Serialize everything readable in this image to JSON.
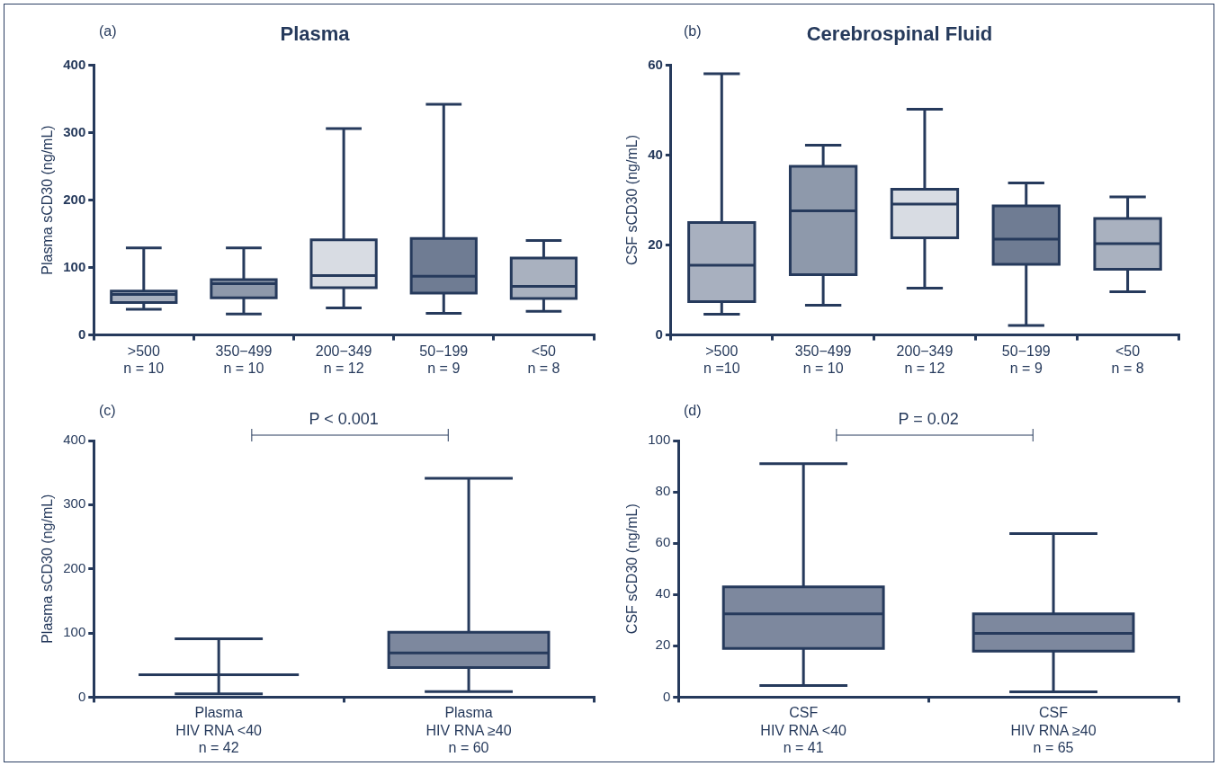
{
  "chart_data": [
    {
      "type": "box",
      "title": "Plasma",
      "ylabel": "Plasma sCD30 (ng/mL)",
      "annotations": [
        "(a)"
      ],
      "categories": [
        ">500\nn = 10",
        "350−499\nn = 10",
        "200−349\nn = 12",
        "50−199\nn = 9",
        "<50\nn = 8"
      ],
      "colors": [
        "#a9b1c0",
        "#8e99ab",
        "#d8dce3",
        "#6f7c93",
        "#a9b1bf"
      ],
      "ylim": [
        0,
        400
      ],
      "yticks": [
        0,
        100,
        200,
        300,
        400
      ],
      "boxes": [
        {
          "low": 38,
          "q1": 48,
          "median": 60,
          "q3": 65,
          "high": 129
        },
        {
          "low": 31,
          "q1": 55,
          "median": 76,
          "q3": 82,
          "high": 129
        },
        {
          "low": 40,
          "q1": 70,
          "median": 88,
          "q3": 141,
          "high": 306
        },
        {
          "low": 32,
          "q1": 62,
          "median": 87,
          "q3": 143,
          "high": 342
        },
        {
          "low": 35,
          "q1": 54,
          "median": 72,
          "q3": 114,
          "high": 140
        }
      ]
    },
    {
      "type": "box",
      "title": "Cerebrospinal Fluid",
      "ylabel": "CSF sCD30 (ng/mL)",
      "annotations": [
        "(b)"
      ],
      "categories": [
        ">500\nn =10",
        "350−499\nn = 10",
        "200−349\nn = 12",
        "50−199\nn = 9",
        "<50\nn = 8"
      ],
      "colors": [
        "#a8b0bf",
        "#8e99ab",
        "#d8dce3",
        "#6f7c93",
        "#a9b1bf"
      ],
      "ylim": [
        0,
        60
      ],
      "yticks": [
        0,
        20,
        40,
        60
      ],
      "boxes": [
        {
          "low": 4.6,
          "q1": 7.4,
          "median": 15.5,
          "q3": 25,
          "high": 58.1
        },
        {
          "low": 6.6,
          "q1": 13.4,
          "median": 27.6,
          "q3": 37.5,
          "high": 42.2
        },
        {
          "low": 10.4,
          "q1": 21.6,
          "median": 29.1,
          "q3": 32.4,
          "high": 50.2
        },
        {
          "low": 2.1,
          "q1": 15.7,
          "median": 21.3,
          "q3": 28.7,
          "high": 33.8
        },
        {
          "low": 9.6,
          "q1": 14.6,
          "median": 20.3,
          "q3": 25.9,
          "high": 30.7
        }
      ]
    },
    {
      "type": "box",
      "ylabel": "Plasma sCD30 (ng/mL)",
      "annotations": [
        "(c)",
        "P < 0.001"
      ],
      "categories": [
        "Plasma\nHIV RNA <40\nn = 42",
        "Plasma\nHIV RNA ≥40\nn = 60"
      ],
      "colors": [
        "#263a5c",
        "#7d889e"
      ],
      "ylim": [
        0,
        400
      ],
      "yticks": [
        0,
        100,
        200,
        300,
        400
      ],
      "boxes": [
        {
          "low": 5,
          "q1": 35,
          "median": 35,
          "q3": 35,
          "high": 91
        },
        {
          "low": 8.5,
          "q1": 46,
          "median": 69,
          "q3": 101,
          "high": 341
        }
      ]
    },
    {
      "type": "box",
      "ylabel": "CSF sCD30 (ng/mL)",
      "annotations": [
        "(d)",
        "P = 0.02"
      ],
      "categories": [
        "CSF\nHIV RNA <40\nn = 41",
        "CSF\nHIV RNA ≥40\nn = 65"
      ],
      "colors": [
        "#7d889e",
        "#7d889e"
      ],
      "ylim": [
        0,
        100
      ],
      "yticks": [
        0,
        20,
        40,
        60,
        80,
        100
      ],
      "boxes": [
        {
          "low": 4.5,
          "q1": 19,
          "median": 32.5,
          "q3": 43,
          "high": 91
        },
        {
          "low": 2.1,
          "q1": 17.9,
          "median": 24.8,
          "q3": 32.5,
          "high": 63.7
        }
      ]
    }
  ]
}
